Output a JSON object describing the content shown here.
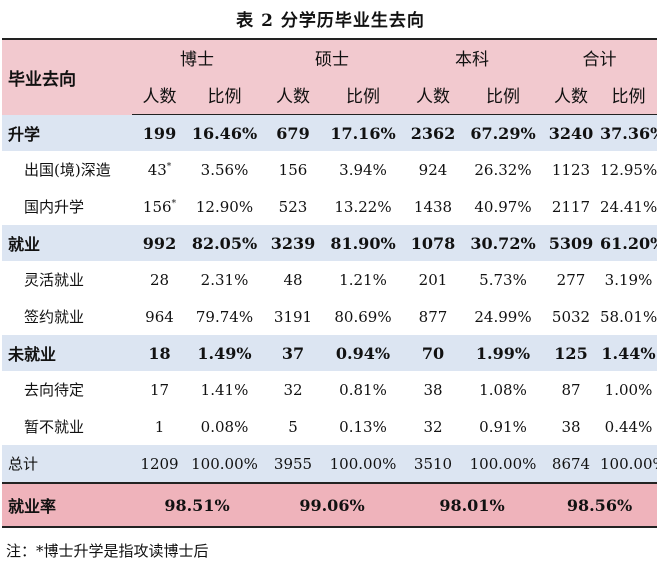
{
  "title": "表 2 分学历毕业生去向",
  "header": {
    "row_label": "毕业去向",
    "groups": [
      "博士",
      "硕士",
      "本科",
      "合计"
    ],
    "count_label": "人数",
    "ratio_label": "比例"
  },
  "rows": [
    {
      "label": "升学",
      "cells": [
        "199",
        "16.46%",
        "679",
        "17.16%",
        "2362",
        "67.29%",
        "3240",
        "37.36%"
      ]
    },
    {
      "label": "出国(境)深造",
      "first_mark": "*",
      "cells": [
        "43",
        "3.56%",
        "156",
        "3.94%",
        "924",
        "26.32%",
        "1123",
        "12.95%"
      ]
    },
    {
      "label": "国内升学",
      "first_mark": "*",
      "cells": [
        "156",
        "12.90%",
        "523",
        "13.22%",
        "1438",
        "40.97%",
        "2117",
        "24.41%"
      ]
    },
    {
      "label": "就业",
      "cells": [
        "992",
        "82.05%",
        "3239",
        "81.90%",
        "1078",
        "30.72%",
        "5309",
        "61.20%"
      ]
    },
    {
      "label": "灵活就业",
      "cells": [
        "28",
        "2.31%",
        "48",
        "1.21%",
        "201",
        "5.73%",
        "277",
        "3.19%"
      ]
    },
    {
      "label": "签约就业",
      "cells": [
        "964",
        "79.74%",
        "3191",
        "80.69%",
        "877",
        "24.99%",
        "5032",
        "58.01%"
      ]
    },
    {
      "label": "未就业",
      "cells": [
        "18",
        "1.49%",
        "37",
        "0.94%",
        "70",
        "1.99%",
        "125",
        "1.44%"
      ]
    },
    {
      "label": "去向待定",
      "cells": [
        "17",
        "1.41%",
        "32",
        "0.81%",
        "38",
        "1.08%",
        "87",
        "1.00%"
      ]
    },
    {
      "label": "暂不就业",
      "cells": [
        "1",
        "0.08%",
        "5",
        "0.13%",
        "32",
        "0.91%",
        "38",
        "0.44%"
      ]
    },
    {
      "label": "总计",
      "cells": [
        "1209",
        "100.00%",
        "3955",
        "100.00%",
        "3510",
        "100.00%",
        "8674",
        "100.00%"
      ]
    }
  ],
  "employment_rate": {
    "label": "就业率",
    "values": [
      "98.51%",
      "99.06%",
      "98.01%",
      "98.56%"
    ]
  },
  "note": "注：*博士升学是指攻读博士后",
  "colors": {
    "header_bg": "#f2c9cf",
    "category_bg": "#dce5f2",
    "rate_bg": "#efb3bb"
  }
}
